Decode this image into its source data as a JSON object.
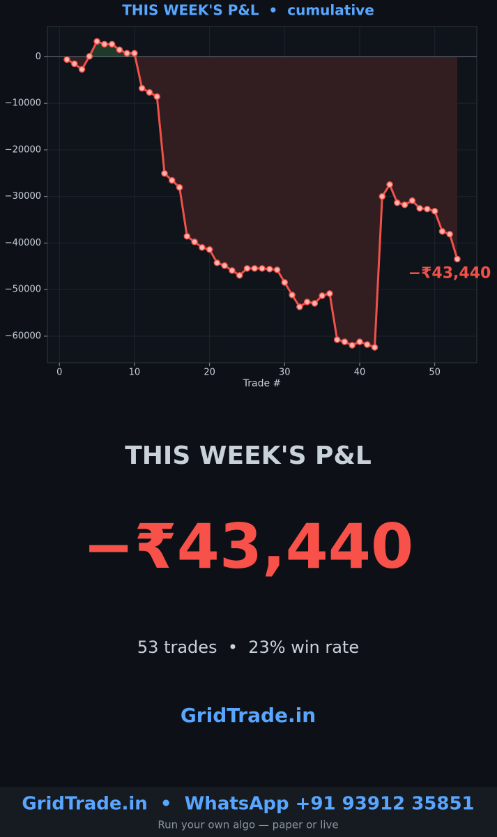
{
  "chart_data": {
    "type": "line",
    "title": "THIS WEEK'S P&L  •  cumulative",
    "x_label": "Trade #",
    "x": [
      1,
      2,
      3,
      4,
      5,
      6,
      7,
      8,
      9,
      10,
      11,
      12,
      13,
      14,
      15,
      16,
      17,
      18,
      19,
      20,
      21,
      22,
      23,
      24,
      25,
      26,
      27,
      28,
      29,
      30,
      31,
      32,
      33,
      34,
      35,
      36,
      37,
      38,
      39,
      40,
      41,
      42,
      43,
      44,
      45,
      46,
      47,
      48,
      49,
      50,
      51,
      52,
      53
    ],
    "series": [
      {
        "color": "#f0524a",
        "values": [
          -600,
          -1500,
          -2700,
          100,
          3300,
          2700,
          2700,
          1500,
          750,
          750,
          -6750,
          -7650,
          -8550,
          -25050,
          -26550,
          -28050,
          -38550,
          -39750,
          -40950,
          -41400,
          -44250,
          -44850,
          -45900,
          -46950,
          -45450,
          -45450,
          -45450,
          -45600,
          -45750,
          -48450,
          -51150,
          -53700,
          -52650,
          -52950,
          -51300,
          -50850,
          -60750,
          -61200,
          -61950,
          -61200,
          -61800,
          -62400,
          -30000,
          -27450,
          -31350,
          -31800,
          -30900,
          -32550,
          -32700,
          -33150,
          -37500,
          -38100,
          -43440
        ]
      }
    ],
    "positive_fill": "#1f3a2a",
    "negative_fill": "#321d20",
    "annotation": "−₹43,440",
    "xlim": [
      -1.6,
      55.6
    ],
    "ylim": [
      -65700,
      6500
    ],
    "xticks": [
      0,
      10,
      20,
      30,
      40,
      50
    ],
    "yticks": [
      {
        "value": -60000,
        "label": "−60000"
      },
      {
        "value": -50000,
        "label": "−50000"
      },
      {
        "value": -40000,
        "label": "−40000"
      },
      {
        "value": -30000,
        "label": "−30000"
      },
      {
        "value": -20000,
        "label": "−20000"
      },
      {
        "value": -10000,
        "label": "−10000"
      },
      0
    ],
    "grid": true
  },
  "hero": {
    "heading": "THIS WEEK'S P&L",
    "value": "−₹43,440",
    "stats": "53 trades  •  23% win rate",
    "brand": "GridTrade.in"
  },
  "footer": {
    "line": "GridTrade.in  •  WhatsApp +91 93912 35851",
    "sub": "Run your own algo — paper or live"
  }
}
